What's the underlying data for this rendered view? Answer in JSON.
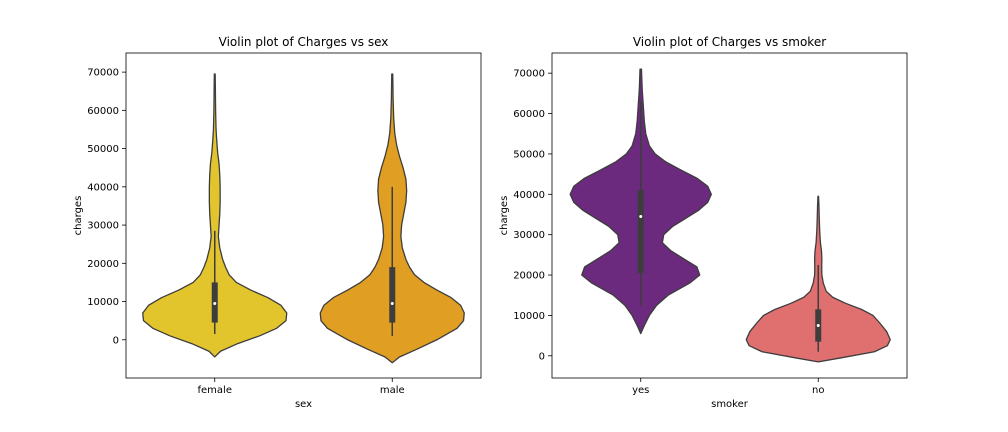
{
  "chart_data": [
    {
      "type": "violin",
      "title": "Violin plot of Charges vs sex",
      "xlabel": "sex",
      "ylabel": "charges",
      "ylim": [
        -10000,
        75000
      ],
      "yticks": [
        0,
        10000,
        20000,
        30000,
        40000,
        50000,
        60000,
        70000
      ],
      "categories": [
        "female",
        "male"
      ],
      "colors": [
        "#e2c42d",
        "#e09f22"
      ],
      "violins": [
        {
          "category": "female",
          "min": -4500,
          "max": 69500,
          "q1": 4500,
          "median": 9500,
          "q3": 15000,
          "whisker_low": 1500,
          "whisker_high": 28500,
          "profile": [
            [
              -4500,
              0
            ],
            [
              -3000,
              0.08
            ],
            [
              -1000,
              0.32
            ],
            [
              1000,
              0.62
            ],
            [
              3000,
              0.86
            ],
            [
              5000,
              0.99
            ],
            [
              7000,
              1.0
            ],
            [
              9000,
              0.92
            ],
            [
              11000,
              0.74
            ],
            [
              13000,
              0.5
            ],
            [
              15000,
              0.3
            ],
            [
              17000,
              0.2
            ],
            [
              19000,
              0.15
            ],
            [
              21000,
              0.11
            ],
            [
              24000,
              0.07
            ],
            [
              27000,
              0.05
            ],
            [
              30000,
              0.06
            ],
            [
              33000,
              0.07
            ],
            [
              36000,
              0.075
            ],
            [
              40000,
              0.075
            ],
            [
              43000,
              0.07
            ],
            [
              46000,
              0.06
            ],
            [
              49000,
              0.04
            ],
            [
              52000,
              0.028
            ],
            [
              55000,
              0.018
            ],
            [
              60000,
              0.012
            ],
            [
              65000,
              0.009
            ],
            [
              69500,
              0.006
            ]
          ]
        },
        {
          "category": "male",
          "min": -6000,
          "max": 69500,
          "q1": 4500,
          "median": 9500,
          "q3": 19000,
          "whisker_low": 1000,
          "whisker_high": 40000,
          "profile": [
            [
              -6000,
              0
            ],
            [
              -4500,
              0.1
            ],
            [
              -2500,
              0.34
            ],
            [
              0,
              0.62
            ],
            [
              3000,
              0.9
            ],
            [
              5000,
              0.99
            ],
            [
              7000,
              1.0
            ],
            [
              9000,
              0.95
            ],
            [
              11000,
              0.82
            ],
            [
              13000,
              0.62
            ],
            [
              15000,
              0.44
            ],
            [
              17000,
              0.31
            ],
            [
              19000,
              0.24
            ],
            [
              21000,
              0.19
            ],
            [
              24000,
              0.14
            ],
            [
              27000,
              0.12
            ],
            [
              30000,
              0.13
            ],
            [
              33000,
              0.16
            ],
            [
              36000,
              0.19
            ],
            [
              39000,
              0.2
            ],
            [
              42000,
              0.19
            ],
            [
              45000,
              0.15
            ],
            [
              48000,
              0.1
            ],
            [
              51000,
              0.06
            ],
            [
              54000,
              0.035
            ],
            [
              58000,
              0.02
            ],
            [
              63000,
              0.012
            ],
            [
              69500,
              0.007
            ]
          ]
        }
      ]
    },
    {
      "type": "violin",
      "title": "Violin plot of Charges vs smoker",
      "xlabel": "smoker",
      "ylabel": "charges",
      "ylim": [
        -5500,
        75000
      ],
      "yticks": [
        0,
        10000,
        20000,
        30000,
        40000,
        50000,
        60000,
        70000
      ],
      "categories": [
        "yes",
        "no"
      ],
      "colors": [
        "#6b2a7d",
        "#e07070"
      ],
      "violins": [
        {
          "category": "yes",
          "min": 5500,
          "max": 71000,
          "q1": 20500,
          "median": 34500,
          "q3": 41000,
          "whisker_low": 12500,
          "whisker_high": 63000,
          "profile": [
            [
              5500,
              0
            ],
            [
              7500,
              0.05
            ],
            [
              10000,
              0.12
            ],
            [
              12500,
              0.22
            ],
            [
              15000,
              0.38
            ],
            [
              18000,
              0.68
            ],
            [
              20000,
              0.82
            ],
            [
              22000,
              0.78
            ],
            [
              24000,
              0.6
            ],
            [
              26000,
              0.42
            ],
            [
              28000,
              0.3
            ],
            [
              30000,
              0.32
            ],
            [
              32000,
              0.44
            ],
            [
              34000,
              0.62
            ],
            [
              36000,
              0.8
            ],
            [
              38000,
              0.93
            ],
            [
              40000,
              0.98
            ],
            [
              42000,
              0.93
            ],
            [
              44000,
              0.78
            ],
            [
              46000,
              0.56
            ],
            [
              48000,
              0.35
            ],
            [
              50000,
              0.2
            ],
            [
              52000,
              0.12
            ],
            [
              55000,
              0.07
            ],
            [
              58000,
              0.05
            ],
            [
              62000,
              0.035
            ],
            [
              66000,
              0.02
            ],
            [
              71000,
              0.01
            ]
          ]
        },
        {
          "category": "no",
          "min": -1500,
          "max": 39500,
          "q1": 3500,
          "median": 7500,
          "q3": 11500,
          "whisker_low": 1000,
          "whisker_high": 22500,
          "profile": [
            [
              -1500,
              0
            ],
            [
              -500,
              0.32
            ],
            [
              1000,
              0.78
            ],
            [
              2500,
              0.96
            ],
            [
              4000,
              1.0
            ],
            [
              6000,
              0.95
            ],
            [
              8000,
              0.86
            ],
            [
              10000,
              0.76
            ],
            [
              11500,
              0.6
            ],
            [
              13000,
              0.38
            ],
            [
              14500,
              0.2
            ],
            [
              16000,
              0.11
            ],
            [
              18000,
              0.07
            ],
            [
              20000,
              0.05
            ],
            [
              22000,
              0.048
            ],
            [
              24000,
              0.05
            ],
            [
              26000,
              0.045
            ],
            [
              28000,
              0.03
            ],
            [
              31000,
              0.02
            ],
            [
              34000,
              0.014
            ],
            [
              37000,
              0.01
            ],
            [
              39500,
              0.004
            ]
          ]
        }
      ]
    }
  ]
}
